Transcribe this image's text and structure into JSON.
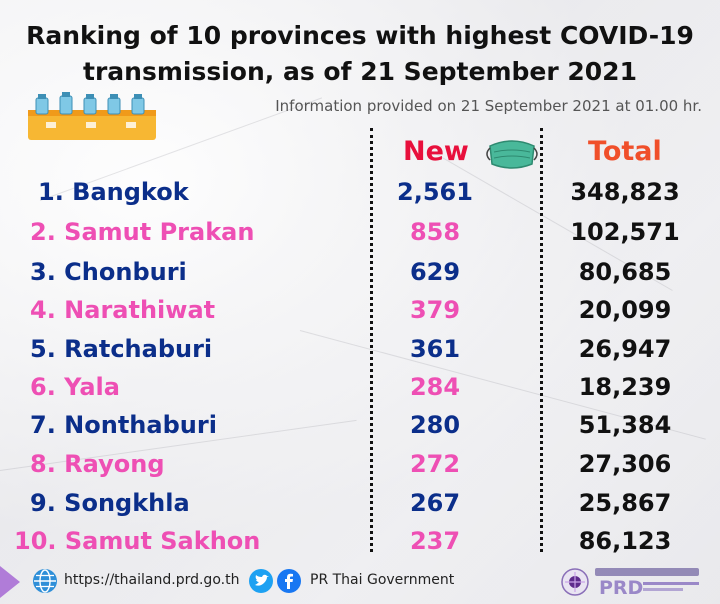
{
  "title_line1": "Ranking of 10 provinces with highest COVID-19",
  "title_line2": "transmission, as of 21 September 2021",
  "info": "Information provided on 21 September 2021 at 01.00 hr.",
  "header_new": "New",
  "header_total": "Total",
  "colors": {
    "blue": "#0b2e8a",
    "pink": "#ee4fb4",
    "red": "#e8103c",
    "orange": "#f04f2a"
  },
  "rows": [
    {
      "name": "1. Bangkok",
      "new": "2,561",
      "total": "348,823",
      "color": "blue"
    },
    {
      "name": "2. Samut Prakan",
      "new": "858",
      "total": "102,571",
      "color": "pink"
    },
    {
      "name": "3. Chonburi",
      "new": "629",
      "total": "80,685",
      "color": "blue"
    },
    {
      "name": "4. Narathiwat",
      "new": "379",
      "total": "20,099",
      "color": "pink"
    },
    {
      "name": "5. Ratchaburi",
      "new": "361",
      "total": "26,947",
      "color": "blue"
    },
    {
      "name": "6. Yala",
      "new": "284",
      "total": "18,239",
      "color": "pink"
    },
    {
      "name": "7. Nonthaburi",
      "new": "280",
      "total": "51,384",
      "color": "blue"
    },
    {
      "name": "8. Rayong",
      "new": "272",
      "total": "27,306",
      "color": "pink"
    },
    {
      "name": "9. Songkhla",
      "new": "267",
      "total": "25,867",
      "color": "blue"
    },
    {
      "name": "10. Samut Sakhon",
      "new": "237",
      "total": "86,123",
      "color": "pink"
    }
  ],
  "footer": {
    "website": "https://thailand.prd.go.th",
    "social": "PR Thai Government",
    "icons": [
      "globe-icon",
      "twitter-icon",
      "facebook-icon",
      "prd-logo"
    ]
  }
}
